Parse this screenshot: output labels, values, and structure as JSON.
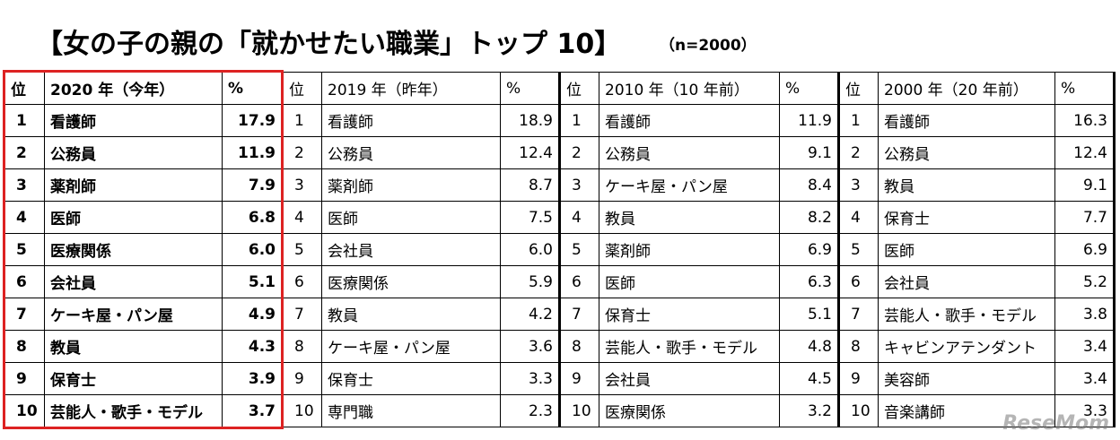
{
  "header": {
    "title": "【女の子の親の「就かせたい職業」トップ 10】",
    "note": "（n=2000）"
  },
  "table": {
    "groups": [
      {
        "columns": [
          "位",
          "2020 年（今年）",
          "%"
        ],
        "rows": [
          [
            "1",
            "看護師",
            "17.9"
          ],
          [
            "2",
            "公務員",
            "11.9"
          ],
          [
            "3",
            "薬剤師",
            "7.9"
          ],
          [
            "4",
            "医師",
            "6.8"
          ],
          [
            "5",
            "医療関係",
            "6.0"
          ],
          [
            "6",
            "会社員",
            "5.1"
          ],
          [
            "7",
            "ケーキ屋・パン屋",
            "4.9"
          ],
          [
            "8",
            "教員",
            "4.3"
          ],
          [
            "9",
            "保育士",
            "3.9"
          ],
          [
            "10",
            "芸能人・歌手・モデル",
            "3.7"
          ]
        ]
      },
      {
        "columns": [
          "位",
          "2019 年（昨年）",
          "%"
        ],
        "rows": [
          [
            "1",
            "看護師",
            "18.9"
          ],
          [
            "2",
            "公務員",
            "12.4"
          ],
          [
            "3",
            "薬剤師",
            "8.7"
          ],
          [
            "4",
            "医師",
            "7.5"
          ],
          [
            "5",
            "会社員",
            "6.0"
          ],
          [
            "6",
            "医療関係",
            "5.9"
          ],
          [
            "7",
            "教員",
            "4.2"
          ],
          [
            "8",
            "ケーキ屋・パン屋",
            "3.6"
          ],
          [
            "9",
            "保育士",
            "3.3"
          ],
          [
            "10",
            "専門職",
            "2.3"
          ]
        ]
      },
      {
        "columns": [
          "位",
          "2010 年（10 年前）",
          "%"
        ],
        "rows": [
          [
            "1",
            "看護師",
            "11.9"
          ],
          [
            "2",
            "公務員",
            "9.1"
          ],
          [
            "3",
            "ケーキ屋・パン屋",
            "8.4"
          ],
          [
            "4",
            "教員",
            "8.2"
          ],
          [
            "5",
            "薬剤師",
            "6.9"
          ],
          [
            "6",
            "医師",
            "6.3"
          ],
          [
            "7",
            "保育士",
            "5.1"
          ],
          [
            "8",
            "芸能人・歌手・モデル",
            "4.8"
          ],
          [
            "9",
            "会社員",
            "4.5"
          ],
          [
            "10",
            "医療関係",
            "3.2"
          ]
        ]
      },
      {
        "columns": [
          "位",
          "2000 年（20 年前）",
          "%"
        ],
        "rows": [
          [
            "1",
            "看護師",
            "16.3"
          ],
          [
            "2",
            "公務員",
            "12.4"
          ],
          [
            "3",
            "教員",
            "9.1"
          ],
          [
            "4",
            "保育士",
            "7.7"
          ],
          [
            "5",
            "医師",
            "6.9"
          ],
          [
            "6",
            "会社員",
            "5.2"
          ],
          [
            "7",
            "芸能人・歌手・モデル",
            "3.8"
          ],
          [
            "8",
            "キャビンアテンダント",
            "3.4"
          ],
          [
            "9",
            "美容師",
            "3.4"
          ],
          [
            "10",
            "音楽講師",
            "3.3"
          ]
        ]
      }
    ]
  },
  "watermark": "ReseMom"
}
